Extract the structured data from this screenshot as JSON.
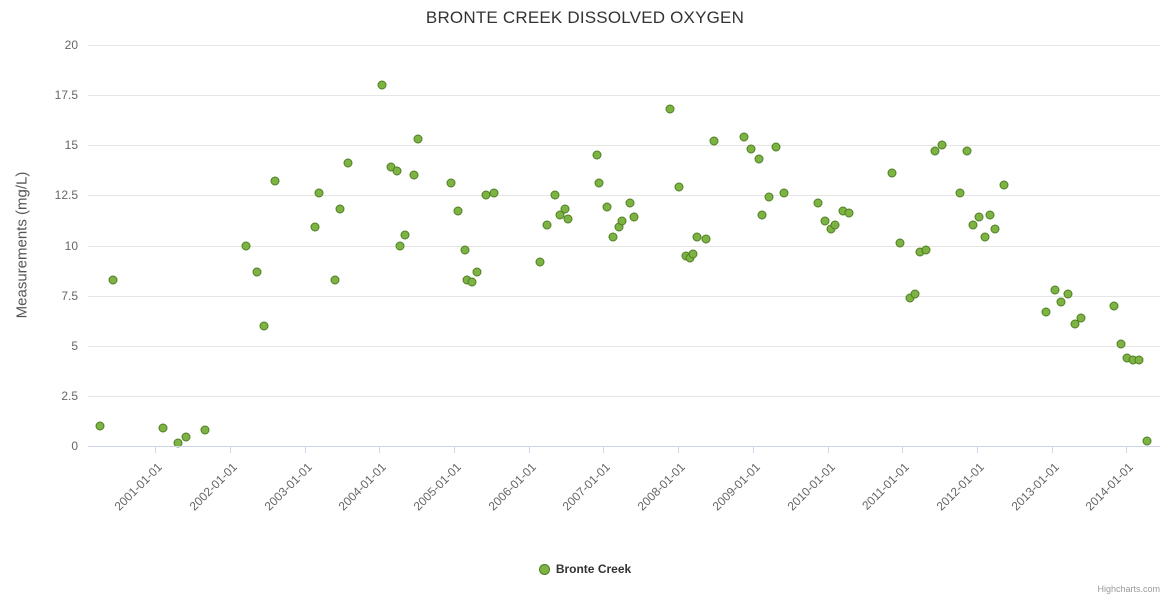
{
  "chart": {
    "title": "BRONTE CREEK DISSOLVED OXYGEN",
    "ylabel": "Measurements (mg/L)"
  },
  "legend": {
    "label": "Bronte Creek"
  },
  "credits": {
    "text": "Highcharts.com"
  },
  "colors": {
    "point_fill": "#7cb342",
    "point_border": "#4f7d23",
    "grid": "#e6e6e6",
    "axis_text": "#666666",
    "title_text": "#333333"
  },
  "chart_data": {
    "type": "scatter",
    "title": "BRONTE CREEK DISSOLVED OXYGEN",
    "xlabel": "",
    "ylabel": "Measurements (mg/L)",
    "ylim": [
      0,
      20
    ],
    "y_ticks": [
      0,
      2.5,
      5,
      7.5,
      10,
      12.5,
      15,
      17.5,
      20
    ],
    "x_tick_labels": [
      "2001-01-01",
      "2002-01-01",
      "2003-01-01",
      "2004-01-01",
      "2005-01-01",
      "2006-01-01",
      "2007-01-01",
      "2008-01-01",
      "2009-01-01",
      "2010-01-01",
      "2011-01-01",
      "2012-01-01",
      "2013-01-01",
      "2014-01-01"
    ],
    "xlim_years": [
      2000.1,
      2014.45
    ],
    "grid": true,
    "legend_position": "bottom",
    "series": [
      {
        "name": "Bronte Creek",
        "points": [
          [
            "2000-04-05",
            1.0
          ],
          [
            "2000-06-10",
            8.3
          ],
          [
            "2001-02-10",
            0.9
          ],
          [
            "2001-04-20",
            0.15
          ],
          [
            "2001-05-28",
            0.45
          ],
          [
            "2001-09-01",
            0.8
          ],
          [
            "2002-03-18",
            10.0
          ],
          [
            "2002-05-12",
            8.7
          ],
          [
            "2002-06-14",
            6.0
          ],
          [
            "2002-08-08",
            13.2
          ],
          [
            "2003-02-22",
            10.9
          ],
          [
            "2003-03-10",
            12.6
          ],
          [
            "2003-05-26",
            8.3
          ],
          [
            "2003-06-24",
            11.8
          ],
          [
            "2003-07-28",
            14.1
          ],
          [
            "2004-01-15",
            18.0
          ],
          [
            "2004-02-27",
            13.9
          ],
          [
            "2004-03-24",
            13.7
          ],
          [
            "2004-04-12",
            10.0
          ],
          [
            "2004-05-07",
            10.5
          ],
          [
            "2004-06-20",
            13.5
          ],
          [
            "2004-07-08",
            15.3
          ],
          [
            "2004-12-17",
            13.1
          ],
          [
            "2005-01-18",
            11.7
          ],
          [
            "2005-02-22",
            9.8
          ],
          [
            "2005-03-03",
            8.3
          ],
          [
            "2005-03-28",
            8.2
          ],
          [
            "2005-04-22",
            8.7
          ],
          [
            "2005-06-06",
            12.5
          ],
          [
            "2005-07-12",
            12.6
          ],
          [
            "2006-02-24",
            9.2
          ],
          [
            "2006-03-28",
            11.0
          ],
          [
            "2006-05-08",
            12.5
          ],
          [
            "2006-05-30",
            11.5
          ],
          [
            "2006-06-24",
            11.8
          ],
          [
            "2006-07-08",
            11.3
          ],
          [
            "2006-11-28",
            14.5
          ],
          [
            "2006-12-12",
            13.1
          ],
          [
            "2007-01-18",
            11.9
          ],
          [
            "2007-02-16",
            10.4
          ],
          [
            "2007-03-18",
            10.9
          ],
          [
            "2007-04-02",
            11.2
          ],
          [
            "2007-05-08",
            12.1
          ],
          [
            "2007-05-30",
            11.4
          ],
          [
            "2007-11-21",
            16.8
          ],
          [
            "2008-01-04",
            12.9
          ],
          [
            "2008-02-09",
            9.5
          ],
          [
            "2008-02-26",
            9.4
          ],
          [
            "2008-03-15",
            9.6
          ],
          [
            "2008-04-01",
            10.4
          ],
          [
            "2008-05-14",
            10.3
          ],
          [
            "2008-06-24",
            15.2
          ],
          [
            "2008-11-17",
            15.4
          ],
          [
            "2008-12-20",
            14.8
          ],
          [
            "2009-01-29",
            14.3
          ],
          [
            "2009-02-16",
            11.5
          ],
          [
            "2009-03-18",
            12.4
          ],
          [
            "2009-04-24",
            14.9
          ],
          [
            "2009-05-30",
            12.6
          ],
          [
            "2009-11-17",
            12.1
          ],
          [
            "2009-12-20",
            11.2
          ],
          [
            "2010-01-18",
            10.8
          ],
          [
            "2010-02-09",
            11.0
          ],
          [
            "2010-03-18",
            11.7
          ],
          [
            "2010-04-16",
            11.6
          ],
          [
            "2010-11-14",
            13.6
          ],
          [
            "2010-12-20",
            10.1
          ],
          [
            "2011-02-09",
            7.4
          ],
          [
            "2011-03-03",
            7.6
          ],
          [
            "2011-03-28",
            9.7
          ],
          [
            "2011-04-27",
            9.8
          ],
          [
            "2011-06-10",
            14.7
          ],
          [
            "2011-07-12",
            15.0
          ],
          [
            "2011-10-08",
            12.6
          ],
          [
            "2011-11-14",
            14.7
          ],
          [
            "2011-12-14",
            11.0
          ],
          [
            "2012-01-11",
            11.4
          ],
          [
            "2012-02-09",
            10.4
          ],
          [
            "2012-03-03",
            11.5
          ],
          [
            "2012-03-28",
            10.8
          ],
          [
            "2012-05-12",
            13.0
          ],
          [
            "2012-12-02",
            6.7
          ],
          [
            "2013-01-15",
            7.8
          ],
          [
            "2013-02-16",
            7.2
          ],
          [
            "2013-03-18",
            7.6
          ],
          [
            "2013-04-22",
            6.1
          ],
          [
            "2013-05-22",
            6.4
          ],
          [
            "2013-10-30",
            7.0
          ],
          [
            "2013-12-06",
            5.1
          ],
          [
            "2014-01-04",
            4.4
          ],
          [
            "2014-02-01",
            4.3
          ],
          [
            "2014-03-03",
            4.3
          ],
          [
            "2014-04-12",
            0.25
          ]
        ]
      }
    ]
  }
}
